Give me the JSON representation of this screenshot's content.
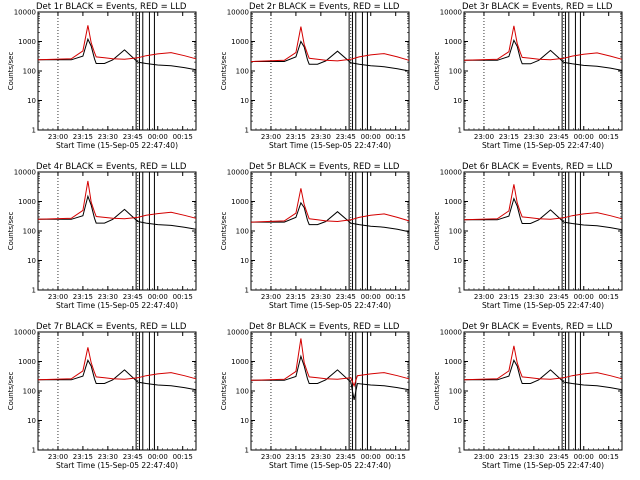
{
  "chart_data": [
    {
      "type": "line",
      "title": "Det 1r BLACK = Events, RED = LLD",
      "ylabel": "Counts/sec",
      "xlabel": "Start Time (15-Sep-05 22:47:40)",
      "x_ticks": [
        "23:00",
        "23:15",
        "23:30",
        "23:45",
        "00:00",
        "00:15"
      ],
      "y_ticks": [
        "1",
        "10",
        "100",
        "1000",
        "10000"
      ],
      "yscale": "log",
      "ylim": [
        1,
        10000
      ],
      "xlim_min": [
        0,
        95
      ],
      "series": [
        {
          "color": "#000000",
          "x": [
            0,
            20,
            27,
            30,
            32,
            34,
            35,
            40,
            45,
            52,
            60,
            65,
            72,
            80,
            88,
            95
          ],
          "y": [
            240,
            240,
            320,
            1200,
            700,
            260,
            180,
            180,
            240,
            520,
            200,
            180,
            160,
            150,
            130,
            110
          ]
        },
        {
          "color": "#d40000",
          "x": [
            0,
            20,
            27,
            30,
            32,
            34,
            35,
            40,
            45,
            52,
            60,
            65,
            72,
            80,
            88,
            95
          ],
          "y": [
            240,
            260,
            480,
            3500,
            900,
            420,
            300,
            280,
            260,
            250,
            280,
            330,
            380,
            420,
            330,
            260
          ]
        }
      ],
      "vlines_solid": [
        59,
        61,
        63,
        67,
        70
      ],
      "vlines_dotted": [
        12,
        60
      ]
    },
    {
      "type": "line",
      "title": "Det 2r BLACK = Events, RED = LLD",
      "ylabel": "Counts/sec",
      "xlabel": "Start Time (15-Sep-05 22:47:40)",
      "x_ticks": [
        "23:00",
        "23:15",
        "23:30",
        "23:45",
        "00:00",
        "00:15"
      ],
      "y_ticks": [
        "1",
        "10",
        "100",
        "1000",
        "10000"
      ],
      "yscale": "log",
      "ylim": [
        1,
        10000
      ],
      "series": [
        {
          "color": "#000000",
          "x": [
            0,
            20,
            27,
            30,
            32,
            34,
            35,
            40,
            45,
            52,
            60,
            65,
            72,
            80,
            88,
            95
          ],
          "y": [
            210,
            210,
            300,
            1000,
            650,
            240,
            170,
            170,
            220,
            470,
            190,
            170,
            150,
            140,
            120,
            100
          ]
        },
        {
          "color": "#d40000",
          "x": [
            0,
            20,
            27,
            30,
            32,
            34,
            35,
            40,
            45,
            52,
            60,
            65,
            72,
            80,
            88,
            95
          ],
          "y": [
            210,
            230,
            420,
            3200,
            800,
            380,
            270,
            250,
            230,
            220,
            250,
            300,
            350,
            390,
            300,
            230
          ]
        }
      ],
      "vlines_solid": [
        59,
        61,
        63,
        67,
        70
      ],
      "vlines_dotted": [
        12,
        60
      ]
    },
    {
      "type": "line",
      "title": "Det 3r BLACK = Events, RED = LLD",
      "ylabel": "Counts/sec",
      "xlabel": "Start Time (15-Sep-05 22:47:40)",
      "x_ticks": [
        "23:00",
        "23:15",
        "23:30",
        "23:45",
        "00:00",
        "00:15"
      ],
      "y_ticks": [
        "1",
        "10",
        "100",
        "1000",
        "10000"
      ],
      "yscale": "log",
      "ylim": [
        1,
        10000
      ],
      "series": [
        {
          "color": "#000000",
          "x": [
            0,
            20,
            27,
            30,
            32,
            34,
            35,
            40,
            45,
            52,
            60,
            65,
            72,
            80,
            88,
            95
          ],
          "y": [
            230,
            230,
            310,
            1100,
            680,
            250,
            175,
            175,
            230,
            500,
            195,
            175,
            155,
            145,
            125,
            105
          ]
        },
        {
          "color": "#d40000",
          "x": [
            0,
            20,
            27,
            30,
            32,
            34,
            35,
            40,
            45,
            52,
            60,
            65,
            72,
            80,
            88,
            95
          ],
          "y": [
            230,
            250,
            450,
            3400,
            850,
            400,
            290,
            270,
            250,
            240,
            270,
            320,
            370,
            410,
            320,
            250
          ]
        }
      ],
      "vlines_solid": [
        59,
        61,
        63,
        67,
        70
      ],
      "vlines_dotted": [
        12,
        60
      ]
    },
    {
      "type": "line",
      "title": "Det 4r BLACK = Events, RED = LLD",
      "ylabel": "Counts/sec",
      "xlabel": "Start Time (15-Sep-05 22:47:40)",
      "x_ticks": [
        "23:00",
        "23:15",
        "23:30",
        "23:45",
        "00:00",
        "00:15"
      ],
      "y_ticks": [
        "1",
        "10",
        "100",
        "1000",
        "10000"
      ],
      "yscale": "log",
      "ylim": [
        1,
        10000
      ],
      "series": [
        {
          "color": "#000000",
          "x": [
            0,
            20,
            27,
            30,
            32,
            34,
            35,
            40,
            45,
            52,
            60,
            65,
            72,
            80,
            88,
            95
          ],
          "y": [
            250,
            250,
            330,
            1500,
            750,
            270,
            185,
            185,
            250,
            540,
            210,
            185,
            165,
            155,
            135,
            115
          ]
        },
        {
          "color": "#d40000",
          "x": [
            0,
            20,
            27,
            30,
            32,
            34,
            35,
            40,
            45,
            52,
            60,
            65,
            72,
            80,
            88,
            95
          ],
          "y": [
            250,
            270,
            500,
            5000,
            950,
            440,
            310,
            290,
            270,
            260,
            290,
            340,
            390,
            430,
            340,
            270
          ]
        }
      ],
      "vlines_solid": [
        59,
        61,
        63,
        67,
        70
      ],
      "vlines_dotted": [
        12,
        60
      ]
    },
    {
      "type": "line",
      "title": "Det 5r BLACK = Events, RED = LLD",
      "ylabel": "Counts/sec",
      "xlabel": "Start Time (15-Sep-05 22:47:40)",
      "x_ticks": [
        "23:00",
        "23:15",
        "23:30",
        "23:45",
        "00:00",
        "00:15"
      ],
      "y_ticks": [
        "1",
        "10",
        "100",
        "1000",
        "10000"
      ],
      "yscale": "log",
      "ylim": [
        1,
        10000
      ],
      "series": [
        {
          "color": "#000000",
          "x": [
            0,
            20,
            27,
            30,
            32,
            34,
            35,
            40,
            45,
            52,
            60,
            65,
            72,
            80,
            88,
            95
          ],
          "y": [
            200,
            200,
            290,
            900,
            620,
            230,
            165,
            165,
            210,
            450,
            185,
            165,
            145,
            135,
            115,
            95
          ]
        },
        {
          "color": "#d40000",
          "x": [
            0,
            20,
            27,
            30,
            32,
            34,
            35,
            40,
            45,
            52,
            60,
            65,
            72,
            80,
            88,
            95
          ],
          "y": [
            200,
            220,
            400,
            2800,
            780,
            370,
            260,
            240,
            220,
            210,
            240,
            290,
            340,
            380,
            290,
            220
          ]
        }
      ],
      "vlines_solid": [
        59,
        61,
        63,
        67,
        70
      ],
      "vlines_dotted": [
        12,
        60
      ]
    },
    {
      "type": "line",
      "title": "Det 6r BLACK = Events, RED = LLD",
      "ylabel": "Counts/sec",
      "xlabel": "Start Time (15-Sep-05 22:47:40)",
      "x_ticks": [
        "23:00",
        "23:15",
        "23:30",
        "23:45",
        "00:00",
        "00:15"
      ],
      "y_ticks": [
        "1",
        "10",
        "100",
        "1000",
        "10000"
      ],
      "yscale": "log",
      "ylim": [
        1,
        10000
      ],
      "series": [
        {
          "color": "#000000",
          "x": [
            0,
            20,
            27,
            30,
            32,
            34,
            35,
            40,
            45,
            52,
            60,
            65,
            72,
            80,
            88,
            95
          ],
          "y": [
            240,
            240,
            320,
            1250,
            700,
            260,
            180,
            180,
            240,
            520,
            200,
            180,
            160,
            150,
            130,
            110
          ]
        },
        {
          "color": "#d40000",
          "x": [
            0,
            20,
            27,
            30,
            32,
            34,
            35,
            40,
            45,
            52,
            60,
            65,
            72,
            80,
            88,
            95
          ],
          "y": [
            240,
            260,
            480,
            3800,
            900,
            420,
            300,
            280,
            260,
            250,
            280,
            330,
            380,
            420,
            330,
            260
          ]
        }
      ],
      "vlines_solid": [
        59,
        61,
        63,
        67,
        70
      ],
      "vlines_dotted": [
        12,
        60
      ]
    },
    {
      "type": "line",
      "title": "Det 7r BLACK = Events, RED = LLD",
      "ylabel": "Counts/sec",
      "xlabel": "Start Time (15-Sep-05 22:47:40)",
      "x_ticks": [
        "23:00",
        "23:15",
        "23:30",
        "23:45",
        "00:00",
        "00:15"
      ],
      "y_ticks": [
        "1",
        "10",
        "100",
        "1000",
        "10000"
      ],
      "yscale": "log",
      "ylim": [
        1,
        10000
      ],
      "series": [
        {
          "color": "#000000",
          "x": [
            0,
            20,
            27,
            30,
            32,
            34,
            35,
            40,
            45,
            52,
            60,
            65,
            72,
            80,
            88,
            95
          ],
          "y": [
            240,
            240,
            320,
            1100,
            700,
            260,
            180,
            180,
            240,
            520,
            200,
            180,
            160,
            150,
            130,
            110
          ]
        },
        {
          "color": "#d40000",
          "x": [
            0,
            20,
            27,
            30,
            32,
            34,
            35,
            40,
            45,
            52,
            60,
            65,
            72,
            80,
            88,
            95
          ],
          "y": [
            240,
            260,
            480,
            3000,
            900,
            420,
            300,
            280,
            260,
            250,
            280,
            330,
            380,
            420,
            330,
            260
          ]
        }
      ],
      "vlines_solid": [
        59,
        61,
        63,
        67,
        70
      ],
      "vlines_dotted": [
        12,
        60
      ]
    },
    {
      "type": "line",
      "title": "Det 8r BLACK = Events, RED = LLD",
      "ylabel": "Counts/sec",
      "xlabel": "Start Time (15-Sep-05 22:47:40)",
      "x_ticks": [
        "23:00",
        "23:15",
        "23:30",
        "23:45",
        "00:00",
        "00:15"
      ],
      "y_ticks": [
        "1",
        "10",
        "100",
        "1000",
        "10000"
      ],
      "yscale": "log",
      "ylim": [
        1,
        10000
      ],
      "series": [
        {
          "color": "#000000",
          "x": [
            0,
            20,
            27,
            30,
            32,
            34,
            35,
            40,
            45,
            52,
            60,
            62,
            64,
            72,
            80,
            88,
            95
          ],
          "y": [
            230,
            230,
            310,
            1500,
            700,
            260,
            180,
            180,
            240,
            520,
            200,
            50,
            180,
            160,
            150,
            130,
            110
          ]
        },
        {
          "color": "#d40000",
          "x": [
            0,
            20,
            27,
            30,
            32,
            34,
            35,
            40,
            45,
            52,
            60,
            62,
            64,
            72,
            80,
            88,
            95
          ],
          "y": [
            230,
            250,
            460,
            6000,
            900,
            420,
            300,
            280,
            260,
            250,
            280,
            150,
            330,
            380,
            420,
            330,
            260
          ]
        }
      ],
      "vlines_solid": [
        59,
        61,
        63,
        67,
        70
      ],
      "vlines_dotted": [
        12,
        60
      ]
    },
    {
      "type": "line",
      "title": "Det 9r BLACK = Events, RED = LLD",
      "ylabel": "Counts/sec",
      "xlabel": "Start Time (15-Sep-05 22:47:40)",
      "x_ticks": [
        "23:00",
        "23:15",
        "23:30",
        "23:45",
        "00:00",
        "00:15"
      ],
      "y_ticks": [
        "1",
        "10",
        "100",
        "1000",
        "10000"
      ],
      "yscale": "log",
      "ylim": [
        1,
        10000
      ],
      "series": [
        {
          "color": "#000000",
          "x": [
            0,
            20,
            27,
            30,
            32,
            34,
            35,
            40,
            45,
            52,
            60,
            65,
            72,
            80,
            88,
            95
          ],
          "y": [
            240,
            240,
            320,
            1100,
            700,
            260,
            180,
            180,
            240,
            520,
            200,
            180,
            160,
            150,
            130,
            110
          ]
        },
        {
          "color": "#d40000",
          "x": [
            0,
            20,
            27,
            30,
            32,
            34,
            35,
            40,
            45,
            52,
            60,
            65,
            72,
            80,
            88,
            95
          ],
          "y": [
            240,
            260,
            480,
            3400,
            900,
            420,
            300,
            280,
            260,
            250,
            280,
            330,
            380,
            420,
            330,
            260
          ]
        }
      ],
      "vlines_solid": [
        59,
        61,
        63,
        67,
        70
      ],
      "vlines_dotted": [
        12,
        60
      ]
    }
  ]
}
